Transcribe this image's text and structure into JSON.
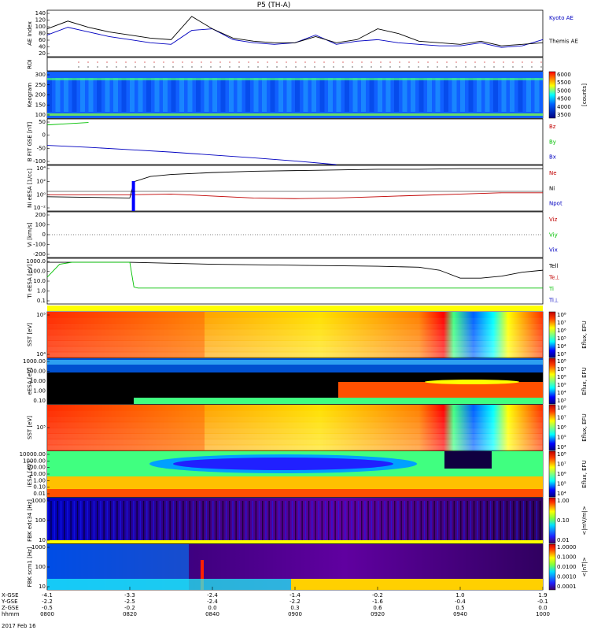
{
  "chart_data": {
    "type": "line",
    "title": "P5 (TH-A)",
    "date_label": "2017 Feb 16",
    "time_ticks": [
      "0800",
      "0820",
      "0840",
      "0900",
      "0920",
      "0940",
      "1000"
    ],
    "ephemeris": {
      "labels": [
        "X-GSE",
        "Y-GSE",
        "Z-GSE",
        "hhmm"
      ],
      "x_gse": [
        "-4.1",
        "-3.3",
        "-2.4",
        "-1.4",
        "-0.2",
        "1.0",
        "1.9"
      ],
      "y_gse": [
        "-2.2",
        "-2.5",
        "-2.4",
        "-2.2",
        "-1.6",
        "-0.4",
        "-0.1"
      ],
      "z_gse": [
        "-0.5",
        "-0.2",
        "0.0",
        "0.3",
        "0.6",
        "0.5",
        "0.0"
      ]
    },
    "panels": [
      {
        "id": "ae",
        "ylabel": "AE Index",
        "yticks": [
          "140",
          "120",
          "100",
          "80",
          "60",
          "40",
          "20"
        ],
        "ylim": [
          0,
          150
        ],
        "series": [
          {
            "name": "Kyoto AE",
            "color": "#0000c0",
            "x": [
              0,
              5,
              10,
              15,
              20,
              25,
              30,
              35,
              40,
              45,
              50,
              55,
              60,
              65,
              70,
              75,
              80,
              85,
              90,
              95,
              100,
              105,
              110,
              115,
              120
            ],
            "y": [
              70,
              95,
              80,
              65,
              55,
              45,
              40,
              85,
              90,
              55,
              45,
              40,
              45,
              70,
              40,
              50,
              55,
              45,
              40,
              35,
              35,
              45,
              30,
              35,
              55
            ]
          },
          {
            "name": "Themis AE",
            "color": "#000000",
            "x": [
              0,
              5,
              10,
              15,
              20,
              25,
              30,
              35,
              40,
              45,
              50,
              55,
              60,
              65,
              70,
              75,
              80,
              85,
              90,
              95,
              100,
              105,
              110,
              115,
              120
            ],
            "y": [
              90,
              115,
              95,
              80,
              70,
              60,
              55,
              130,
              90,
              60,
              50,
              45,
              45,
              65,
              45,
              55,
              90,
              75,
              50,
              45,
              40,
              50,
              35,
              40,
              45
            ]
          }
        ]
      },
      {
        "id": "roi",
        "ylabel": "ROI",
        "yticks": []
      },
      {
        "id": "keogram",
        "ylabel": "Keogram",
        "yticks": [
          "300",
          "250",
          "200",
          "150",
          "100"
        ],
        "colorbar": {
          "label": "[counts]",
          "ticks": [
            "6000",
            "5500",
            "5000",
            "4500",
            "4000",
            "3500"
          ]
        }
      },
      {
        "id": "bfit",
        "ylabel": "B FIT GSE [nT]",
        "yticks": [
          "50",
          "0",
          "-50",
          "-100"
        ],
        "ylim": [
          -110,
          80
        ],
        "series": [
          {
            "name": "Bz",
            "color": "#c00000",
            "x": [],
            "y": []
          },
          {
            "name": "By",
            "color": "#00c000",
            "x": [
              0,
              5,
              10
            ],
            "y": [
              55,
              60,
              65
            ]
          },
          {
            "name": "Bx",
            "color": "#0000c0",
            "x": [
              0,
              10,
              20,
              30,
              40,
              50,
              60,
              70
            ],
            "y": [
              -30,
              -38,
              -48,
              -58,
              -70,
              -82,
              -95,
              -110
            ]
          }
        ]
      },
      {
        "id": "ni",
        "ylabel": "Ni eESA [1/cc]",
        "yticks": [
          "10⁴",
          "10²",
          "10⁰",
          "10⁻²"
        ],
        "series": [
          {
            "name": "Ne",
            "color": "#c00000",
            "x": [
              0,
              20,
              30,
              40,
              50,
              60,
              70,
              80,
              90,
              100,
              110,
              120
            ],
            "y": [
              0,
              0,
              0.1,
              -0.2,
              -0.5,
              -0.6,
              -0.5,
              -0.3,
              -0.1,
              0.1,
              0.3,
              0.3
            ]
          },
          {
            "name": "Ni",
            "color": "#000000",
            "x": [
              0,
              20,
              21,
              25,
              30,
              40,
              50,
              60,
              70,
              80,
              90,
              100,
              110,
              120
            ],
            "y": [
              -0.3,
              -0.5,
              2.0,
              2.8,
              3.1,
              3.4,
              3.6,
              3.7,
              3.8,
              3.9,
              3.9,
              4.0,
              4.0,
              4.0
            ]
          },
          {
            "name": "Npot",
            "color": "#0000c0",
            "x": [],
            "y": []
          }
        ]
      },
      {
        "id": "vi",
        "ylabel": "Vi [km/s]",
        "yticks": [
          "200",
          "100",
          "0",
          "-100",
          "-200"
        ],
        "series": [
          {
            "name": "Viz",
            "color": "#c00000",
            "x": [],
            "y": []
          },
          {
            "name": "Viy",
            "color": "#00c000",
            "x": [],
            "y": []
          },
          {
            "name": "Vix",
            "color": "#0000c0",
            "x": [],
            "y": []
          }
        ]
      },
      {
        "id": "ti",
        "ylabel": "Ti eESA [eV]",
        "yticks": [
          "1000.0",
          "100.0",
          "10.0",
          "1.0",
          "0.1"
        ],
        "series": [
          {
            "name": "Tell",
            "color": "#000000",
            "x": [
              0,
              10,
              20,
              30,
              40,
              50,
              60,
              70,
              80,
              90,
              95,
              100,
              105,
              110,
              115,
              120
            ],
            "y": [
              3.0,
              3.0,
              3.0,
              2.9,
              2.8,
              2.75,
              2.7,
              2.65,
              2.6,
              2.5,
              2.2,
              1.4,
              1.4,
              1.6,
              2.0,
              2.2
            ]
          },
          {
            "name": "Te⊥",
            "color": "#c00000",
            "x": [],
            "y": []
          },
          {
            "name": "Ti",
            "color": "#00c000",
            "x": [
              0,
              3,
              6,
              20,
              21,
              22,
              120
            ],
            "y": [
              1.5,
              2.8,
              3.0,
              3.0,
              0.5,
              0.4,
              0.4
            ]
          },
          {
            "name": "Ti⊥",
            "color": "#0000c0",
            "x": [],
            "y": []
          }
        ]
      },
      {
        "id": "sst_e",
        "ylabel": "SST [eV]",
        "yticks": [
          "10⁵",
          "10⁴"
        ],
        "colorbar": {
          "label": "Eflux, EFU",
          "ticks": [
            "10⁸",
            "10⁷",
            "10⁶",
            "10⁵",
            "10⁴",
            "10³"
          ]
        }
      },
      {
        "id": "esa_e",
        "ylabel": "eESA [eV]",
        "yticks": [
          "1000.00",
          "100.00",
          "10.00",
          "1.00",
          "0.10"
        ],
        "colorbar": {
          "label": "Eflux, EFU",
          "ticks": [
            "10⁸",
            "10⁷",
            "10⁶",
            "10⁵",
            "10⁴",
            "10³"
          ]
        }
      },
      {
        "id": "sst_i",
        "ylabel": "SST [eV]",
        "yticks": [
          "10⁵"
        ],
        "colorbar": {
          "label": "Eflux, EFU",
          "ticks": [
            "10⁸",
            "10⁷",
            "10⁶",
            "10⁵",
            "10⁴"
          ]
        }
      },
      {
        "id": "esa_i",
        "ylabel": "iESA [eV]",
        "yticks": [
          "10000.00",
          "1000.00",
          "100.00",
          "10.00",
          "1.00",
          "0.10",
          "0.01"
        ],
        "colorbar": {
          "label": "Eflux, EFU",
          "ticks": [
            "10⁸",
            "10⁷",
            "10⁶",
            "10⁵",
            "10⁴"
          ]
        }
      },
      {
        "id": "fbk_e",
        "ylabel": "FBK edc34 [Hz]",
        "yticks": [
          "1000",
          "100",
          "10"
        ],
        "colorbar": {
          "label": "<|mV/m|>",
          "ticks": [
            "1.00",
            "0.10",
            "0.01"
          ]
        }
      },
      {
        "id": "fbk_b",
        "ylabel": "FBK scm1 [Hz]",
        "yticks": [
          "1000",
          "100",
          "10"
        ],
        "colorbar": {
          "label": "<|nT|>",
          "ticks": [
            "1.0000",
            "0.1000",
            "0.0100",
            "0.0010",
            "0.0001"
          ]
        }
      }
    ]
  }
}
